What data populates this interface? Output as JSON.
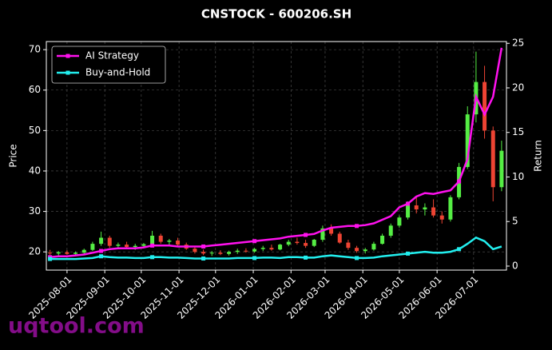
{
  "chart_data": {
    "type": "candlestick",
    "title": "CNSTOCK - 600206.SH",
    "ylabel": "Price",
    "y2label": "Return",
    "watermark": "uqtool.com",
    "up_color": "#55ee44",
    "down_color": "#ee4433",
    "grid": true,
    "legend": "upper left",
    "x": [
      "2025-07-18",
      "2025-07-25",
      "2025-08-01",
      "2025-08-08",
      "2025-08-15",
      "2025-08-22",
      "2025-08-29",
      "2025-09-05",
      "2025-09-12",
      "2025-09-19",
      "2025-09-26",
      "2025-10-03",
      "2025-10-10",
      "2025-10-17",
      "2025-10-24",
      "2025-10-31",
      "2025-11-07",
      "2025-11-14",
      "2025-11-21",
      "2025-11-28",
      "2025-12-05",
      "2025-12-12",
      "2025-12-19",
      "2025-12-26",
      "2026-01-02",
      "2026-01-09",
      "2026-01-16",
      "2026-01-23",
      "2026-01-30",
      "2026-02-06",
      "2026-02-13",
      "2026-02-20",
      "2026-02-27",
      "2026-03-06",
      "2026-03-13",
      "2026-03-20",
      "2026-03-27",
      "2026-04-03",
      "2026-04-10",
      "2026-04-17",
      "2026-04-24",
      "2026-05-01",
      "2026-05-08",
      "2026-05-15",
      "2026-05-22",
      "2026-05-29",
      "2026-06-05",
      "2026-06-12",
      "2026-06-19",
      "2026-06-26",
      "2026-07-03",
      "2026-07-10",
      "2026-07-17",
      "2026-07-24"
    ],
    "open": [
      19.8,
      19.6,
      19.9,
      19.5,
      19.8,
      20.5,
      22.0,
      23.5,
      21.5,
      21.8,
      21.2,
      21.5,
      21.9,
      24.0,
      22.5,
      22.8,
      21.8,
      20.8,
      20.0,
      19.6,
      19.8,
      19.5,
      20.0,
      20.3,
      20.1,
      20.7,
      21.0,
      20.6,
      21.8,
      22.5,
      22.2,
      21.5,
      23.0,
      25.8,
      24.5,
      22.3,
      21.0,
      20.2,
      20.6,
      22.0,
      24.0,
      26.5,
      28.5,
      31.5,
      30.5,
      31.0,
      29.0,
      28.0,
      33.5,
      41.0,
      54.0,
      62.0,
      50.0,
      36.0
    ],
    "high": [
      20.5,
      20.2,
      20.4,
      20.1,
      20.8,
      22.5,
      25.0,
      24.0,
      22.3,
      22.5,
      22.0,
      22.2,
      25.2,
      24.5,
      23.2,
      23.5,
      22.3,
      21.2,
      20.6,
      20.2,
      20.4,
      20.3,
      20.8,
      20.9,
      21.0,
      21.5,
      21.8,
      22.0,
      23.0,
      23.5,
      23.0,
      23.2,
      26.5,
      26.8,
      25.0,
      23.0,
      21.5,
      21.0,
      22.5,
      24.5,
      27.0,
      29.0,
      32.5,
      33.5,
      32.0,
      33.0,
      30.0,
      34.0,
      42.0,
      56.0,
      69.5,
      66.0,
      51.0,
      47.5
    ],
    "low": [
      19.2,
      19.0,
      19.3,
      19.0,
      19.4,
      20.2,
      21.5,
      21.0,
      20.8,
      21.0,
      20.5,
      20.9,
      21.5,
      22.0,
      21.8,
      21.5,
      20.5,
      19.6,
      19.2,
      19.0,
      19.2,
      19.1,
      19.5,
      19.8,
      19.8,
      20.2,
      20.3,
      20.4,
      21.4,
      21.8,
      21.0,
      21.2,
      22.5,
      24.0,
      22.0,
      20.5,
      19.8,
      19.6,
      20.3,
      21.8,
      23.5,
      26.0,
      28.0,
      29.5,
      29.0,
      28.5,
      27.0,
      27.5,
      33.0,
      40.5,
      52.0,
      48.0,
      32.5,
      35.0
    ],
    "close": [
      19.6,
      19.9,
      19.5,
      19.8,
      20.5,
      22.0,
      23.5,
      21.5,
      21.8,
      21.2,
      21.5,
      21.9,
      24.0,
      22.5,
      22.8,
      21.8,
      20.8,
      20.0,
      19.6,
      19.8,
      19.5,
      20.0,
      20.3,
      20.1,
      20.7,
      21.0,
      20.6,
      21.8,
      22.5,
      22.2,
      21.5,
      23.0,
      25.8,
      24.5,
      22.3,
      21.0,
      20.2,
      20.6,
      22.0,
      24.0,
      26.5,
      28.5,
      31.5,
      30.5,
      31.0,
      29.0,
      28.0,
      33.5,
      41.0,
      54.0,
      62.0,
      50.0,
      36.0,
      45.0
    ],
    "series": [
      {
        "name": "AI Strategy",
        "color": "#ff11ee",
        "axis": "y2",
        "values": [
          1.0,
          1.1,
          1.1,
          1.2,
          1.3,
          1.5,
          1.7,
          1.9,
          2.0,
          2.0,
          2.0,
          2.1,
          2.3,
          2.3,
          2.3,
          2.2,
          2.2,
          2.2,
          2.2,
          2.3,
          2.4,
          2.5,
          2.6,
          2.7,
          2.8,
          2.9,
          3.0,
          3.1,
          3.3,
          3.4,
          3.5,
          3.6,
          4.0,
          4.3,
          4.4,
          4.5,
          4.5,
          4.6,
          4.8,
          5.2,
          5.6,
          6.6,
          7.0,
          7.8,
          8.2,
          8.1,
          8.3,
          8.5,
          9.5,
          12.0,
          19.0,
          17.0,
          19.0,
          24.5
        ]
      },
      {
        "name": "Buy-and-Hold",
        "color": "#22eeee",
        "axis": "y2",
        "values": [
          0.8,
          0.8,
          0.8,
          0.8,
          0.85,
          0.9,
          1.1,
          1.0,
          0.95,
          0.95,
          0.9,
          0.9,
          1.0,
          1.0,
          0.95,
          0.95,
          0.9,
          0.85,
          0.85,
          0.85,
          0.85,
          0.85,
          0.9,
          0.9,
          0.9,
          0.95,
          0.95,
          0.9,
          1.0,
          1.0,
          0.95,
          0.95,
          1.1,
          1.2,
          1.1,
          1.0,
          0.9,
          0.9,
          0.95,
          1.1,
          1.2,
          1.3,
          1.4,
          1.5,
          1.6,
          1.5,
          1.5,
          1.6,
          1.9,
          2.5,
          3.2,
          2.8,
          1.9,
          2.2
        ]
      }
    ],
    "xlim": [
      "2025-07-15",
      "2026-07-28"
    ],
    "xticks": [
      "2025-08-01",
      "2025-09-01",
      "2025-10-01",
      "2025-11-01",
      "2025-12-01",
      "2026-01-01",
      "2026-02-01",
      "2026-03-01",
      "2026-04-01",
      "2026-05-01",
      "2026-06-01",
      "2026-07-01"
    ],
    "ylim": [
      15.5,
      72
    ],
    "yticks": [
      20,
      30,
      40,
      50,
      60,
      70
    ],
    "y2lim": [
      -0.45,
      25.2
    ],
    "y2ticks": [
      0,
      5,
      10,
      15,
      20,
      25
    ]
  }
}
